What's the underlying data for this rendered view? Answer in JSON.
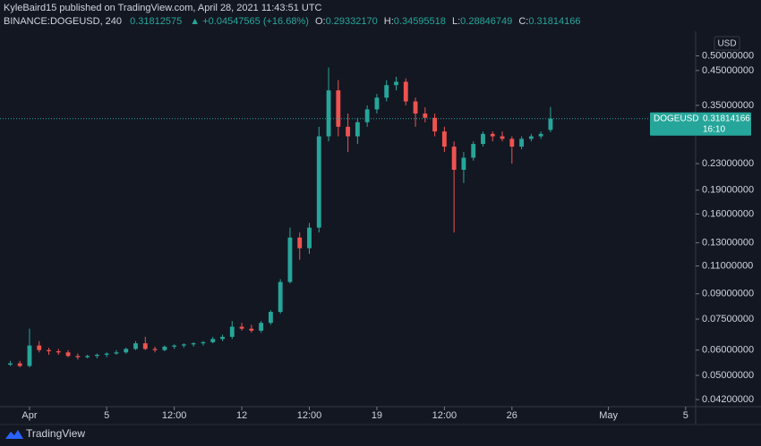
{
  "header": {
    "publisher_line": "KyleBaird15 published on TradingView.com, April 28, 2021 11:43:51 UTC",
    "symbol": "BINANCE:DOGEUSD, 240",
    "last": "0.31812575",
    "change": "▲ +0.04547565 (+16.68%)",
    "ohlc": [
      {
        "label": "O:",
        "value": "0.29332170"
      },
      {
        "label": "H:",
        "value": "0.34595518"
      },
      {
        "label": "L:",
        "value": "0.28846749"
      },
      {
        "label": "C:",
        "value": "0.31814166"
      }
    ]
  },
  "price_label": {
    "symbol": "DOGEUSD",
    "countdown": "16:10"
  },
  "currency_button": "USD",
  "brand": "TradingView",
  "chart_data": {
    "type": "candlestick",
    "log_scale": true,
    "grid": false,
    "up_color": "#26a69a",
    "down_color": "#ef5350",
    "x": [
      0,
      0.5,
      1,
      1.5,
      2,
      2.5,
      3,
      3.5,
      4,
      4.5,
      5,
      5.5,
      6,
      6.5,
      7,
      7.5,
      8,
      8.5,
      9,
      9.5,
      10,
      10.5,
      11,
      11.5,
      12,
      12.5,
      13,
      13.5,
      14,
      14.5,
      15,
      15.5,
      16,
      16.5,
      17,
      17.5,
      18,
      18.5,
      19,
      19.5,
      20,
      20.5,
      21,
      21.5,
      22,
      22.5,
      23,
      23.5,
      24,
      24.5,
      25,
      25.5,
      26,
      26.5,
      27,
      27.5,
      28
    ],
    "open": [
      0.054,
      0.0545,
      0.0535,
      0.062,
      0.06,
      0.0595,
      0.059,
      0.0575,
      0.057,
      0.0575,
      0.058,
      0.0585,
      0.059,
      0.0605,
      0.063,
      0.0605,
      0.06,
      0.0615,
      0.062,
      0.0625,
      0.063,
      0.0635,
      0.065,
      0.066,
      0.071,
      0.07,
      0.069,
      0.073,
      0.079,
      0.098,
      0.135,
      0.125,
      0.145,
      0.28,
      0.39,
      0.3,
      0.28,
      0.31,
      0.34,
      0.37,
      0.405,
      0.415,
      0.36,
      0.33,
      0.32,
      0.29,
      0.26,
      0.22,
      0.24,
      0.265,
      0.285,
      0.28,
      0.275,
      0.26,
      0.275,
      0.28,
      0.2933217
    ],
    "high": [
      0.0555,
      0.0555,
      0.07,
      0.064,
      0.061,
      0.0605,
      0.06,
      0.0585,
      0.058,
      0.0585,
      0.059,
      0.06,
      0.061,
      0.064,
      0.066,
      0.0615,
      0.062,
      0.0625,
      0.063,
      0.0635,
      0.064,
      0.066,
      0.067,
      0.074,
      0.073,
      0.072,
      0.074,
      0.08,
      0.1,
      0.145,
      0.14,
      0.15,
      0.3,
      0.46,
      0.42,
      0.33,
      0.32,
      0.35,
      0.38,
      0.42,
      0.43,
      0.425,
      0.37,
      0.345,
      0.33,
      0.3,
      0.27,
      0.25,
      0.27,
      0.29,
      0.29,
      0.29,
      0.28,
      0.28,
      0.285,
      0.29,
      0.34595518
    ],
    "low": [
      0.0535,
      0.053,
      0.053,
      0.059,
      0.058,
      0.058,
      0.057,
      0.056,
      0.0565,
      0.0565,
      0.057,
      0.058,
      0.0585,
      0.06,
      0.06,
      0.059,
      0.0595,
      0.0605,
      0.061,
      0.0615,
      0.062,
      0.063,
      0.064,
      0.065,
      0.069,
      0.068,
      0.068,
      0.072,
      0.078,
      0.097,
      0.115,
      0.12,
      0.14,
      0.27,
      0.28,
      0.25,
      0.265,
      0.3,
      0.33,
      0.36,
      0.39,
      0.35,
      0.3,
      0.31,
      0.28,
      0.25,
      0.14,
      0.2,
      0.235,
      0.26,
      0.27,
      0.27,
      0.23,
      0.255,
      0.27,
      0.275,
      0.28846749
    ],
    "close": [
      0.0545,
      0.0535,
      0.062,
      0.06,
      0.0595,
      0.059,
      0.0575,
      0.057,
      0.0575,
      0.058,
      0.0585,
      0.059,
      0.0605,
      0.063,
      0.0605,
      0.06,
      0.0615,
      0.062,
      0.0625,
      0.063,
      0.0635,
      0.065,
      0.066,
      0.071,
      0.07,
      0.069,
      0.073,
      0.079,
      0.098,
      0.135,
      0.125,
      0.145,
      0.28,
      0.39,
      0.3,
      0.28,
      0.31,
      0.34,
      0.37,
      0.405,
      0.415,
      0.36,
      0.33,
      0.32,
      0.29,
      0.26,
      0.22,
      0.24,
      0.265,
      0.285,
      0.28,
      0.275,
      0.26,
      0.275,
      0.28,
      0.285,
      0.31814166
    ],
    "xlim": [
      -0.53,
      35.52
    ],
    "xticks": [
      {
        "value": 1,
        "label": "Apr"
      },
      5,
      {
        "value": 8.5,
        "label": "12:00"
      },
      12,
      {
        "value": 15.5,
        "label": "12:00"
      },
      19,
      {
        "value": 22.5,
        "label": "12:00"
      },
      26,
      {
        "value": 31,
        "label": "May"
      },
      {
        "value": 35,
        "label": "5"
      }
    ],
    "ylim": [
      0.0399,
      0.597
    ],
    "yticks": [
      {
        "value": 0.5,
        "label": "0.50000000"
      },
      {
        "value": 0.45,
        "label": "0.45000000"
      },
      {
        "value": 0.35,
        "label": "0.35000000"
      },
      {
        "value": 0.23,
        "label": "0.23000000"
      },
      {
        "value": 0.19,
        "label": "0.19000000"
      },
      {
        "value": 0.16,
        "label": "0.16000000"
      },
      {
        "value": 0.13,
        "label": "0.13000000"
      },
      {
        "value": 0.11,
        "label": "0.11000000"
      },
      {
        "value": 0.09,
        "label": "0.09000000"
      },
      {
        "value": 0.075,
        "label": "0.07500000"
      },
      {
        "value": 0.06,
        "label": "0.06000000"
      },
      {
        "value": 0.05,
        "label": "0.05000000"
      },
      {
        "value": 0.042,
        "label": "0.04200000"
      }
    ]
  }
}
